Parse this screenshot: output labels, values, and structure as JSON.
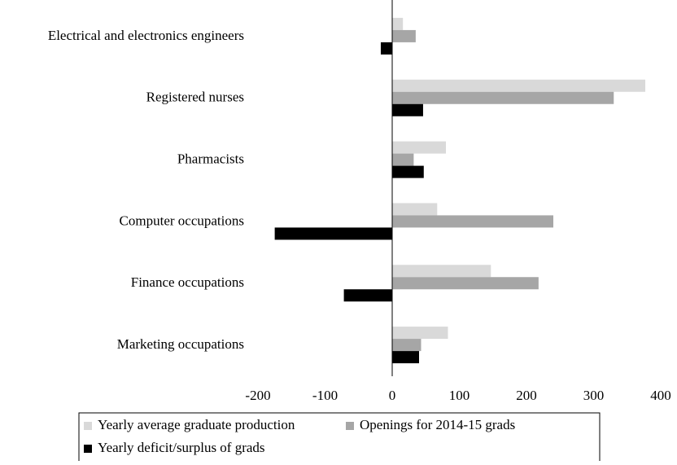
{
  "chart_data": {
    "type": "bar",
    "orientation": "horizontal",
    "categories": [
      "Electrical and electronics engineers",
      "Registered nurses",
      "Pharmacists",
      "Computer occupations",
      "Finance occupations",
      "Marketing occupations"
    ],
    "series": [
      {
        "name": "Yearly average graduate production",
        "color": "#d9d9d9",
        "values": [
          16,
          377,
          80,
          67,
          147,
          83
        ]
      },
      {
        "name": "Openings for 2014-15 grads",
        "color": "#a6a6a6",
        "values": [
          35,
          330,
          32,
          240,
          218,
          43
        ]
      },
      {
        "name": "Yearly deficit/surplus of grads",
        "color": "#000000",
        "values": [
          -17,
          46,
          47,
          -175,
          -72,
          40
        ]
      }
    ],
    "xlim": [
      -200,
      400
    ],
    "xticks": [
      -200,
      -100,
      0,
      100,
      200,
      300,
      400
    ],
    "legend": "bottom"
  }
}
